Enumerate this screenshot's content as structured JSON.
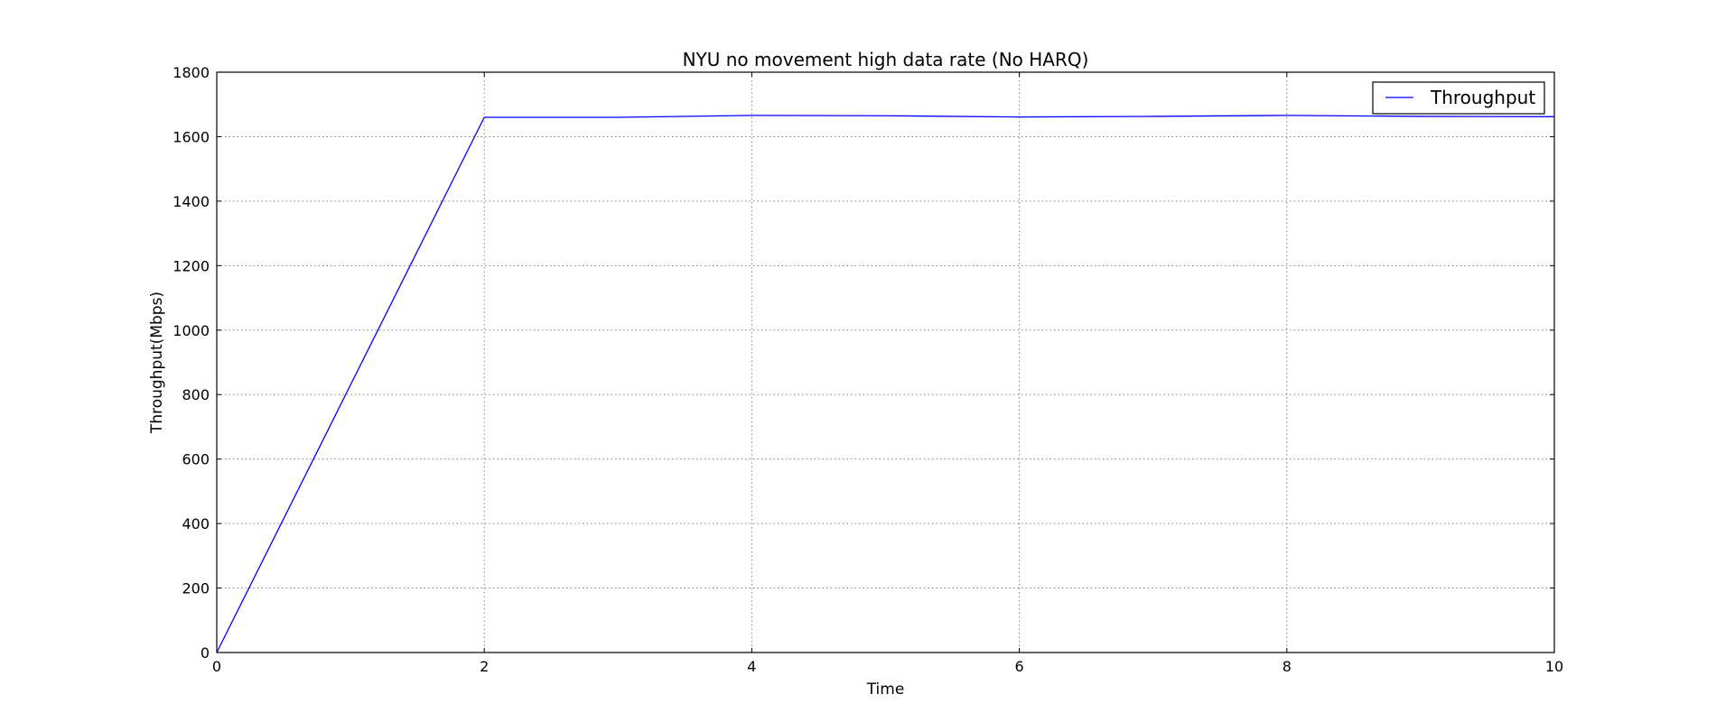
{
  "chart_data": {
    "type": "line",
    "title": "NYU no movement high data rate (No HARQ)",
    "xlabel": "Time",
    "ylabel": "Throughput(Mbps)",
    "xlim": [
      0,
      10
    ],
    "ylim": [
      0,
      1800
    ],
    "xticks": [
      0,
      2,
      4,
      6,
      8,
      10
    ],
    "yticks": [
      0,
      200,
      400,
      600,
      800,
      1000,
      1200,
      1400,
      1600,
      1800
    ],
    "grid": true,
    "legend_position": "top-right",
    "series": [
      {
        "name": "Throughput",
        "color": "#0000ff",
        "x": [
          0,
          2,
          3,
          4,
          5,
          6,
          7,
          8,
          9,
          10
        ],
        "y": [
          0,
          1660,
          1660,
          1666,
          1665,
          1661,
          1663,
          1666,
          1663,
          1662
        ]
      }
    ]
  }
}
